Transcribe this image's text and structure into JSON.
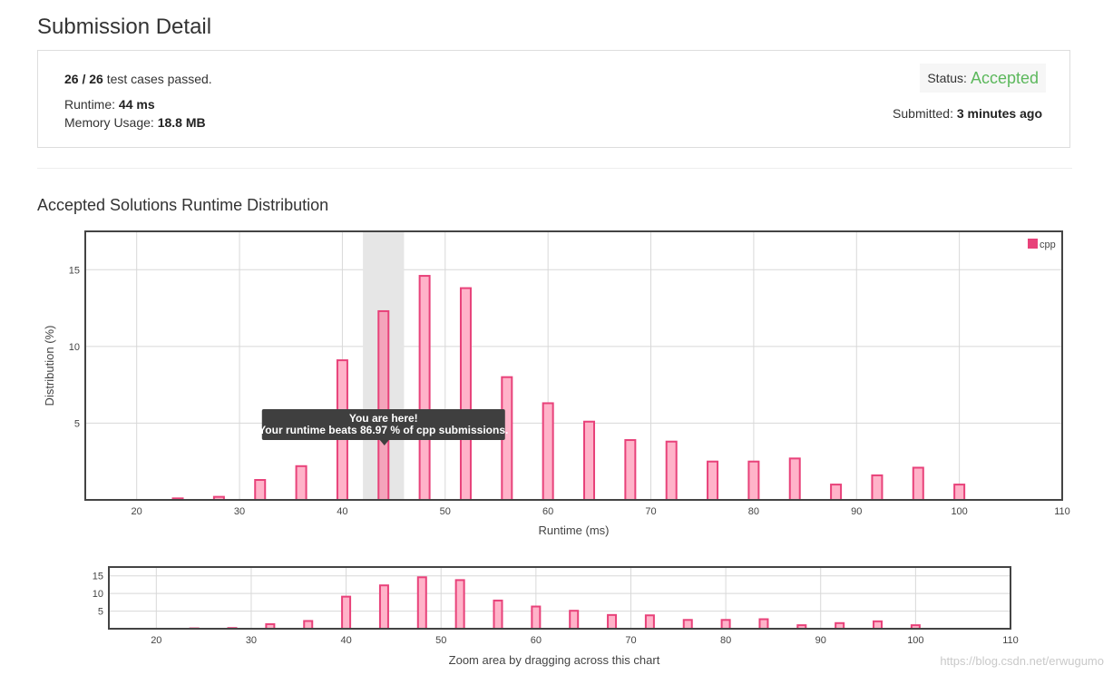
{
  "page": {
    "title": "Submission Detail"
  },
  "summary": {
    "passed": "26",
    "total": "26",
    "passed_suffix": "test cases passed.",
    "runtime_label": "Runtime:",
    "runtime_value": "44 ms",
    "memory_label": "Memory Usage:",
    "memory_value": "18.8 MB",
    "status_label": "Status:",
    "status_value": "Accepted",
    "submitted_label": "Submitted:",
    "submitted_value": "3 minutes ago"
  },
  "section": {
    "title": "Accepted Solutions Runtime Distribution"
  },
  "tooltip": {
    "line1": "You are here!",
    "line2": "Your runtime beats 86.97 % of cpp submissions."
  },
  "navigator": {
    "caption": "Zoom area by dragging across this chart"
  },
  "watermark": "https://blog.csdn.net/erwugumo",
  "colors": {
    "accepted": "#5cb85c",
    "bar_fill": "#ffb3c9",
    "bar_stroke": "#e8427a",
    "legend": "#e8427a"
  },
  "chart_data": [
    {
      "type": "bar",
      "title": "",
      "xlabel": "Runtime (ms)",
      "ylabel": "Distribution (%)",
      "xlim": [
        15,
        110
      ],
      "ylim": [
        0,
        17.5
      ],
      "x_ticks": [
        20,
        30,
        40,
        50,
        60,
        70,
        80,
        90,
        100,
        110
      ],
      "y_ticks": [
        5,
        10,
        15
      ],
      "grid": true,
      "legend_position": "top-right",
      "highlight_range": [
        42,
        46
      ],
      "current_runtime": 44,
      "series": [
        {
          "name": "cpp",
          "x": [
            24,
            28,
            32,
            36,
            40,
            44,
            48,
            52,
            56,
            60,
            64,
            68,
            72,
            76,
            80,
            84,
            88,
            92,
            96,
            100
          ],
          "values": [
            0.1,
            0.2,
            1.3,
            2.2,
            9.1,
            12.3,
            14.6,
            13.8,
            8.0,
            6.3,
            5.1,
            3.9,
            3.8,
            2.5,
            2.5,
            2.7,
            1.0,
            1.6,
            2.1,
            1.0
          ]
        }
      ]
    },
    {
      "type": "bar",
      "title": "",
      "xlabel": "",
      "ylabel": "",
      "xlim": [
        15,
        110
      ],
      "ylim": [
        0,
        17.5
      ],
      "x_ticks": [
        20,
        30,
        40,
        50,
        60,
        70,
        80,
        90,
        100,
        110
      ],
      "y_ticks": [
        5,
        10,
        15
      ],
      "grid": true,
      "series": [
        {
          "x": [
            24,
            28,
            32,
            36,
            40,
            44,
            48,
            52,
            56,
            60,
            64,
            68,
            72,
            76,
            80,
            84,
            88,
            92,
            96,
            100
          ],
          "values": [
            0.1,
            0.2,
            1.3,
            2.2,
            9.1,
            12.3,
            14.6,
            13.8,
            8.0,
            6.3,
            5.1,
            3.9,
            3.8,
            2.5,
            2.5,
            2.7,
            1.0,
            1.6,
            2.1,
            1.0
          ]
        }
      ]
    }
  ]
}
